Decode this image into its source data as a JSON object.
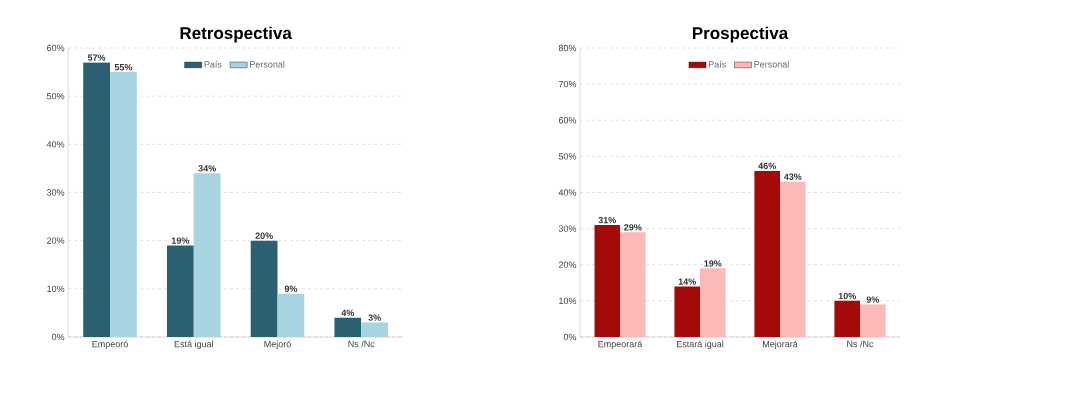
{
  "chart_data": [
    {
      "type": "bar",
      "title": "Retrospectiva",
      "categories": [
        "Empeoró",
        "Está igual",
        "Mejoró",
        "Ns /Nc"
      ],
      "series": [
        {
          "name": "País",
          "color": "#2b5f72",
          "values": [
            57,
            19,
            20,
            4
          ],
          "value_labels": [
            "57%",
            "19%",
            "20%",
            "4%"
          ]
        },
        {
          "name": "Personal",
          "color": "#a8d4e2",
          "values": [
            55,
            34,
            9,
            3
          ],
          "value_labels": [
            "55%",
            "34%",
            "9%",
            "3%"
          ]
        }
      ],
      "ylim": [
        0,
        60
      ],
      "yticks": [
        {
          "value": 0,
          "label": "0%"
        },
        {
          "value": 10,
          "label": "10%"
        },
        {
          "value": 20,
          "label": "20%"
        },
        {
          "value": 30,
          "label": "30%"
        },
        {
          "value": 40,
          "label": "40%"
        },
        {
          "value": 50,
          "label": "50%"
        },
        {
          "value": 60,
          "label": "60%"
        }
      ],
      "grid": "y",
      "legend": "top"
    },
    {
      "type": "bar",
      "title": "Prospectiva",
      "categories": [
        "Empeorará",
        "Estará igual",
        "Mejorará",
        "Ns /Nc"
      ],
      "series": [
        {
          "name": "País",
          "color": "#a50a0a",
          "values": [
            31,
            14,
            46,
            10
          ],
          "value_labels": [
            "31%",
            "14%",
            "46%",
            "10%"
          ]
        },
        {
          "name": "Personal",
          "color": "#fdb8b8",
          "values": [
            29,
            19,
            43,
            9
          ],
          "value_labels": [
            "29%",
            "19%",
            "43%",
            "9%"
          ]
        }
      ],
      "ylim": [
        0,
        80
      ],
      "yticks": [
        {
          "value": 0,
          "label": "0%"
        },
        {
          "value": 10,
          "label": "10%"
        },
        {
          "value": 20,
          "label": "20%"
        },
        {
          "value": 30,
          "label": "30%"
        },
        {
          "value": 40,
          "label": "40%"
        },
        {
          "value": 50,
          "label": "50%"
        },
        {
          "value": 60,
          "label": "60%"
        },
        {
          "value": 70,
          "label": "70%"
        },
        {
          "value": 80,
          "label": "80%"
        }
      ],
      "grid": "y",
      "legend": "top"
    }
  ]
}
